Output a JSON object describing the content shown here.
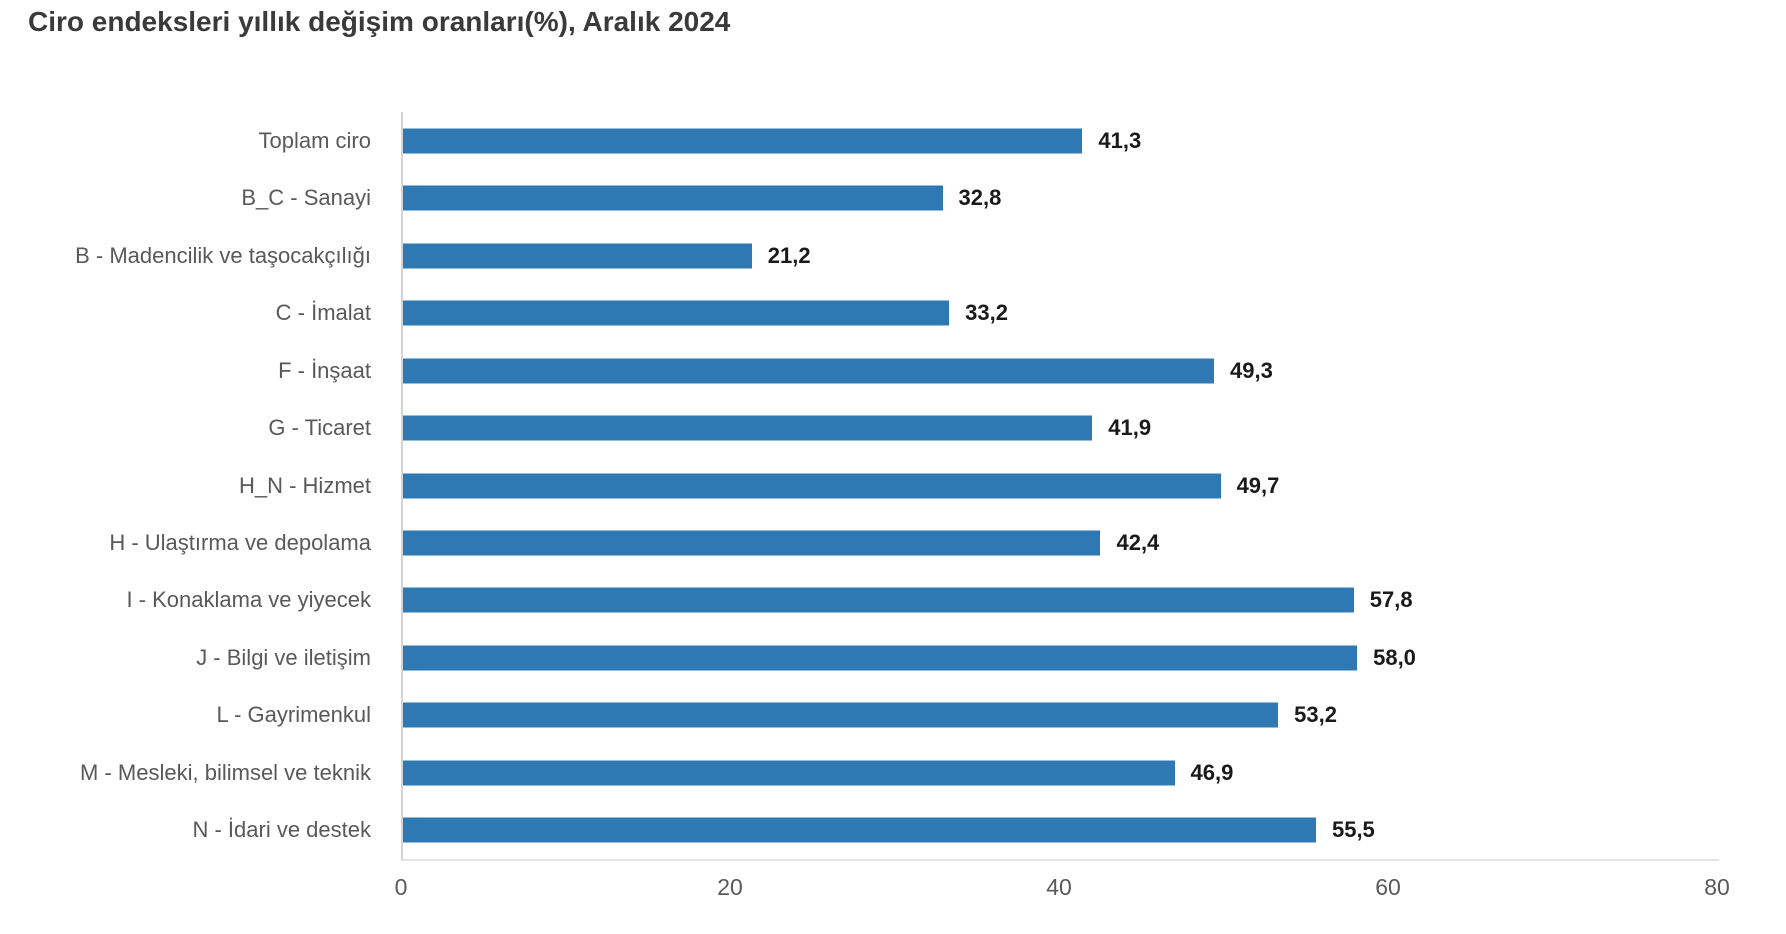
{
  "chart_data": {
    "type": "bar",
    "orientation": "horizontal",
    "title": "Ciro endeksleri yıllık değişim oranları(%), Aralık 2024",
    "categories": [
      "Toplam ciro",
      "B_C - Sanayi",
      "B - Madencilik ve taşocakçılığı",
      "C - İmalat",
      "F - İnşaat",
      "G - Ticaret",
      "H_N - Hizmet",
      "H - Ulaştırma ve depolama",
      "I - Konaklama ve yiyecek",
      "J - Bilgi ve iletişim",
      "L - Gayrimenkul",
      "M - Mesleki, bilimsel ve teknik",
      "N - İdari ve destek"
    ],
    "values": [
      41.3,
      32.8,
      21.2,
      33.2,
      49.3,
      41.9,
      49.7,
      42.4,
      57.8,
      58.0,
      53.2,
      46.9,
      55.5
    ],
    "value_labels": [
      "41,3",
      "32,8",
      "21,2",
      "33,2",
      "49,3",
      "41,9",
      "49,7",
      "42,4",
      "57,8",
      "58,0",
      "53,2",
      "46,9",
      "55,5"
    ],
    "xlabel": "",
    "ylabel": "",
    "xlim": [
      0,
      80
    ],
    "x_ticks": [
      0,
      20,
      40,
      60,
      80
    ],
    "x_tick_labels": [
      "0",
      "20",
      "40",
      "60",
      "80"
    ],
    "grid": "off",
    "legend": "none",
    "bar_color": "#2e78b4",
    "value_label_color": "#1a1a1a",
    "category_label_color": "#595959",
    "axis_line_color": "#d4d4d4"
  }
}
